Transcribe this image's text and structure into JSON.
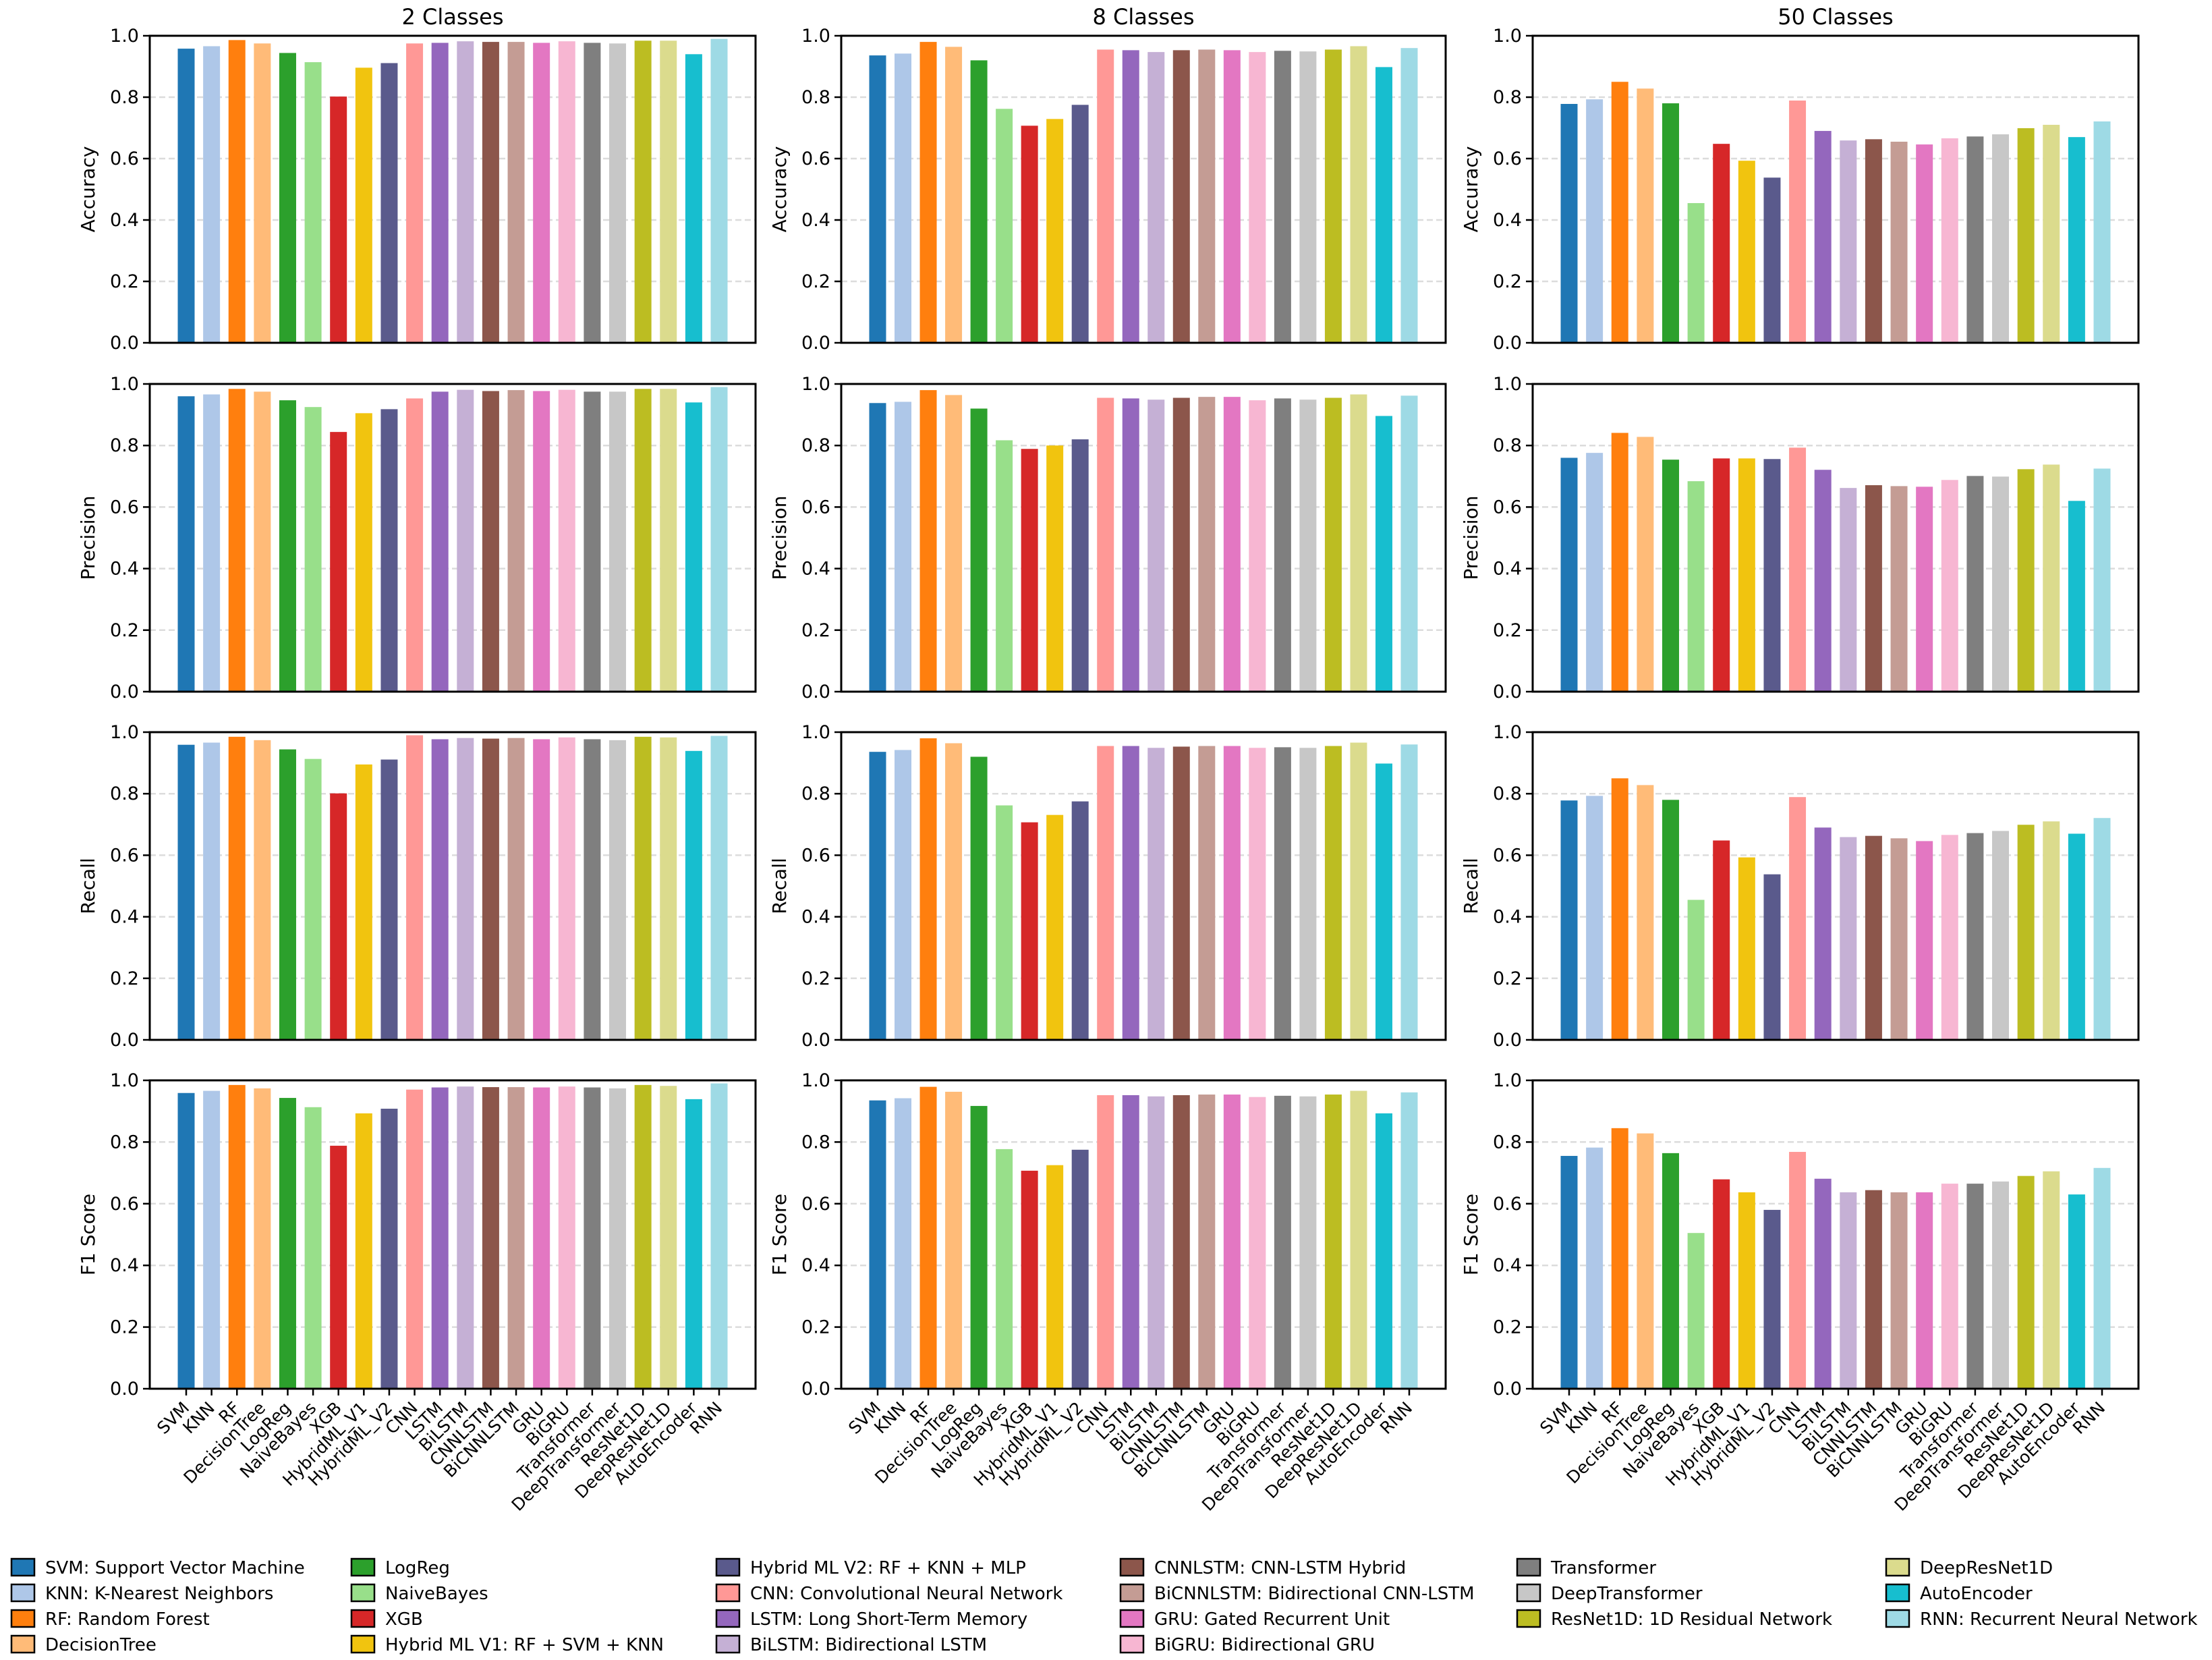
{
  "chart_data": {
    "type": "bar",
    "layout": "grid 4 rows (metrics) x 3 columns (class settings)",
    "categories": [
      "SVM",
      "KNN",
      "RF",
      "DecisionTree",
      "LogReg",
      "NaiveBayes",
      "XGB",
      "HybridML_V1",
      "HybridML_V2",
      "CNN",
      "LSTM",
      "BiLSTM",
      "CNNLSTM",
      "BiCNNLSTM",
      "GRU",
      "BiGRU",
      "Transformer",
      "DeepTransformer",
      "ResNet1D",
      "DeepResNet1D",
      "AutoEncoder",
      "RNN"
    ],
    "colors": [
      "#1f77b4",
      "#aec7e8",
      "#ff7f0e",
      "#ffbb78",
      "#2ca02c",
      "#98df8a",
      "#d62728",
      "#f1c40f",
      "#5a5a8c",
      "#ff9896",
      "#9467bd",
      "#c5b0d5",
      "#8c564b",
      "#c49c94",
      "#e377c2",
      "#f7b6d2",
      "#7f7f7f",
      "#c7c7c7",
      "#bcbd22",
      "#dbdb8d",
      "#17becf",
      "#9edae5"
    ],
    "metrics": [
      "Accuracy",
      "Precision",
      "Recall",
      "F1 Score"
    ],
    "ylim": [
      0,
      1
    ],
    "yticks": [
      "0.0",
      "0.2",
      "0.4",
      "0.6",
      "0.8",
      "1.0"
    ],
    "grid": "horizontal dashed",
    "columns": [
      {
        "title": "2 Classes",
        "series": [
          [
            0.958,
            0.966,
            0.986,
            0.975,
            0.944,
            0.914,
            0.802,
            0.896,
            0.911,
            0.975,
            0.977,
            0.982,
            0.98,
            0.98,
            0.977,
            0.982,
            0.977,
            0.975,
            0.984,
            0.984,
            0.94,
            0.99
          ],
          [
            0.96,
            0.966,
            0.984,
            0.975,
            0.947,
            0.925,
            0.844,
            0.905,
            0.918,
            0.953,
            0.975,
            0.981,
            0.977,
            0.98,
            0.977,
            0.981,
            0.975,
            0.975,
            0.984,
            0.984,
            0.94,
            0.99
          ],
          [
            0.959,
            0.966,
            0.985,
            0.974,
            0.944,
            0.913,
            0.801,
            0.895,
            0.911,
            0.99,
            0.977,
            0.981,
            0.979,
            0.981,
            0.977,
            0.983,
            0.977,
            0.974,
            0.985,
            0.983,
            0.939,
            0.988
          ],
          [
            0.959,
            0.966,
            0.985,
            0.974,
            0.943,
            0.913,
            0.788,
            0.893,
            0.908,
            0.97,
            0.977,
            0.98,
            0.978,
            0.978,
            0.977,
            0.98,
            0.977,
            0.974,
            0.985,
            0.982,
            0.939,
            0.99
          ]
        ]
      },
      {
        "title": "8 Classes",
        "series": [
          [
            0.936,
            0.942,
            0.98,
            0.964,
            0.92,
            0.762,
            0.707,
            0.729,
            0.775,
            0.955,
            0.953,
            0.947,
            0.953,
            0.955,
            0.953,
            0.947,
            0.951,
            0.949,
            0.955,
            0.966,
            0.898,
            0.96
          ],
          [
            0.938,
            0.942,
            0.98,
            0.964,
            0.92,
            0.817,
            0.789,
            0.8,
            0.82,
            0.955,
            0.953,
            0.949,
            0.955,
            0.958,
            0.958,
            0.947,
            0.953,
            0.949,
            0.955,
            0.966,
            0.896,
            0.962
          ],
          [
            0.936,
            0.942,
            0.98,
            0.964,
            0.92,
            0.762,
            0.707,
            0.731,
            0.775,
            0.955,
            0.955,
            0.949,
            0.953,
            0.955,
            0.955,
            0.949,
            0.951,
            0.949,
            0.955,
            0.966,
            0.898,
            0.96
          ],
          [
            0.935,
            0.942,
            0.979,
            0.963,
            0.917,
            0.777,
            0.707,
            0.725,
            0.775,
            0.952,
            0.952,
            0.948,
            0.952,
            0.954,
            0.954,
            0.946,
            0.95,
            0.948,
            0.954,
            0.966,
            0.893,
            0.961
          ]
        ]
      },
      {
        "title": "50 Classes",
        "series": [
          [
            0.778,
            0.793,
            0.85,
            0.828,
            0.78,
            0.455,
            0.648,
            0.593,
            0.538,
            0.789,
            0.69,
            0.659,
            0.663,
            0.655,
            0.646,
            0.666,
            0.672,
            0.679,
            0.699,
            0.71,
            0.67,
            0.721
          ],
          [
            0.76,
            0.776,
            0.841,
            0.828,
            0.754,
            0.684,
            0.758,
            0.758,
            0.756,
            0.793,
            0.721,
            0.662,
            0.671,
            0.668,
            0.666,
            0.688,
            0.701,
            0.699,
            0.723,
            0.738,
            0.62,
            0.725
          ],
          [
            0.778,
            0.793,
            0.85,
            0.828,
            0.78,
            0.455,
            0.648,
            0.593,
            0.538,
            0.789,
            0.69,
            0.659,
            0.663,
            0.655,
            0.646,
            0.666,
            0.672,
            0.679,
            0.699,
            0.71,
            0.67,
            0.721
          ],
          [
            0.755,
            0.782,
            0.845,
            0.828,
            0.764,
            0.505,
            0.679,
            0.637,
            0.58,
            0.768,
            0.681,
            0.637,
            0.644,
            0.637,
            0.637,
            0.665,
            0.665,
            0.672,
            0.69,
            0.705,
            0.63,
            0.716
          ]
        ]
      }
    ],
    "legend": {
      "placement": "bottom",
      "labels": [
        "SVM: Support Vector Machine",
        "KNN: K-Nearest Neighbors",
        "RF: Random Forest",
        "DecisionTree",
        "LogReg",
        "NaiveBayes",
        "XGB",
        "Hybrid ML V1: RF + SVM + KNN",
        "Hybrid ML V2: RF + KNN + MLP",
        "CNN: Convolutional Neural Network",
        "LSTM: Long Short-Term Memory",
        "BiLSTM: Bidirectional LSTM",
        "CNNLSTM: CNN-LSTM Hybrid",
        "BiCNNLSTM: Bidirectional CNN-LSTM",
        "GRU: Gated Recurrent Unit",
        "BiGRU: Bidirectional GRU",
        "Transformer",
        "DeepTransformer",
        "ResNet1D: 1D Residual Network",
        "DeepResNet1D",
        "AutoEncoder",
        "RNN: Recurrent Neural Network"
      ]
    }
  }
}
